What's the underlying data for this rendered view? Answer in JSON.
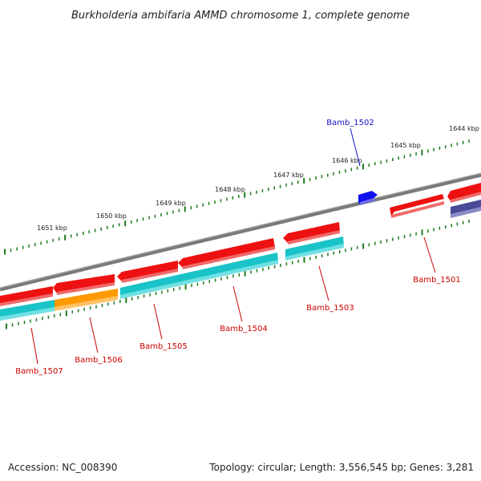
{
  "title": "Burkholderia ambifaria AMMD chromosome 1, complete genome",
  "accession": "Accession: NC_008390",
  "summary": "Topology: circular; Length: 3,556,545 bp; Genes: 3,281",
  "colors": {
    "backbone": "#7a7a7a",
    "tick": "#1f7a1f",
    "forward_gene": "#ee1111",
    "reverse_gene": "#19c3c8",
    "highlight_orange": "#ff9900",
    "highlight_blue": "#1111ee",
    "dark_purple": "#4a4a99",
    "label_red": "#cc0000",
    "label_blue": "#1111cc"
  },
  "ticks": {
    "unit": "kbp",
    "labels": [
      "1651 kbp",
      "1650 kbp",
      "1649 kbp",
      "1648 kbp",
      "1647 kbp",
      "1646 kbp",
      "1645 kbp",
      "1644 kbp"
    ]
  },
  "genes": [
    {
      "name": "Bamb_1507",
      "strand": "reverse"
    },
    {
      "name": "Bamb_1506",
      "strand": "reverse"
    },
    {
      "name": "Bamb_1505",
      "strand": "reverse"
    },
    {
      "name": "Bamb_1504",
      "strand": "reverse"
    },
    {
      "name": "Bamb_1503",
      "strand": "reverse"
    },
    {
      "name": "Bamb_1502",
      "strand": "forward"
    },
    {
      "name": "Bamb_1501",
      "strand": "forward"
    }
  ]
}
